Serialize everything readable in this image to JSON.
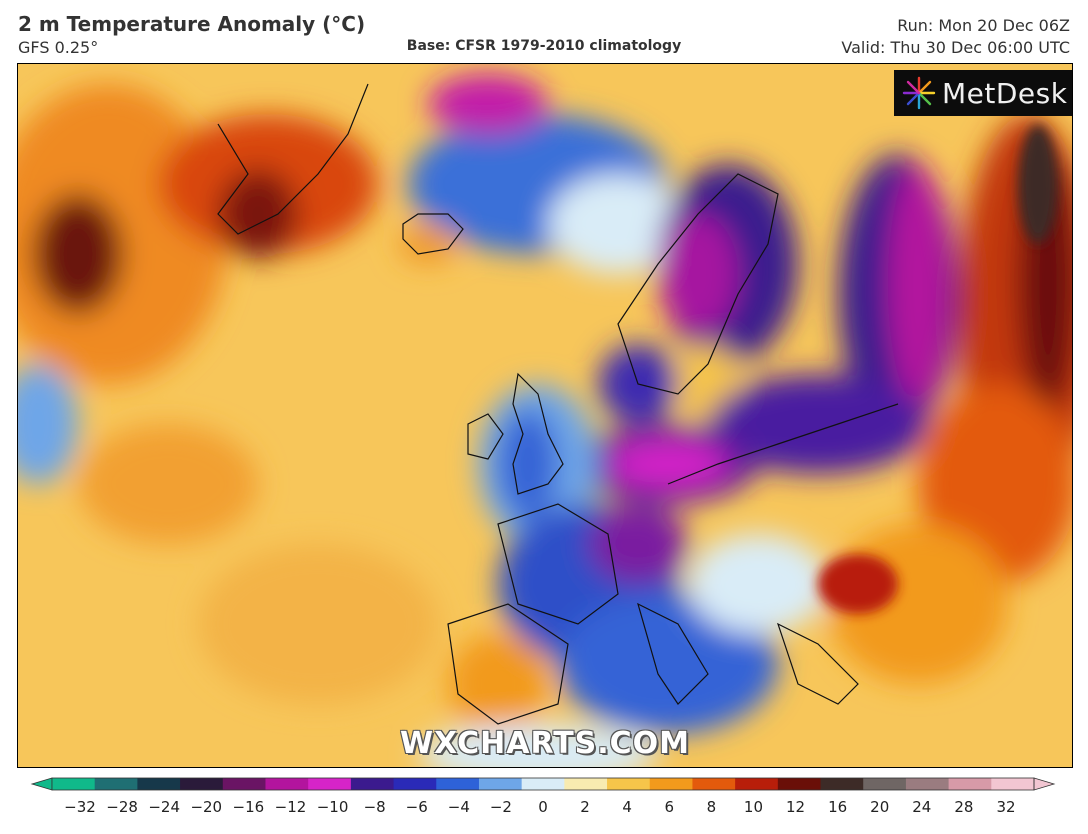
{
  "header": {
    "title": "2 m Temperature Anomaly (°C)",
    "model": "GFS 0.25°",
    "base": "Base: CFSR 1979-2010 climatology",
    "run": "Run: Mon 20 Dec 06Z",
    "valid": "Valid: Thu 30 Dec 06:00 UTC"
  },
  "branding": {
    "logo_text": "MetDesk",
    "watermark": "WXCHARTS.COM"
  },
  "colorbar": {
    "ticks": [
      "−32",
      "−28",
      "−24",
      "−20",
      "−16",
      "−12",
      "−10",
      "−8",
      "−6",
      "−4",
      "−2",
      "0",
      "2",
      "4",
      "6",
      "8",
      "10",
      "12",
      "16",
      "20",
      "24",
      "28",
      "32"
    ],
    "colors": [
      "#10b98a",
      "#1f6f73",
      "#16384a",
      "#2a1a3a",
      "#6a1464",
      "#b3149e",
      "#d624c8",
      "#3b1a8e",
      "#2a2ab8",
      "#2e62d8",
      "#6ea6e8",
      "#d9ecf7",
      "#f8ebb0",
      "#f6c54a",
      "#f29a1c",
      "#e35a0c",
      "#b81e0a",
      "#6a0f08",
      "#3d2b27",
      "#6f6664",
      "#9a7c80",
      "#d79aa8",
      "#f2c6d2"
    ]
  },
  "map": {
    "legend_units": "°C"
  }
}
